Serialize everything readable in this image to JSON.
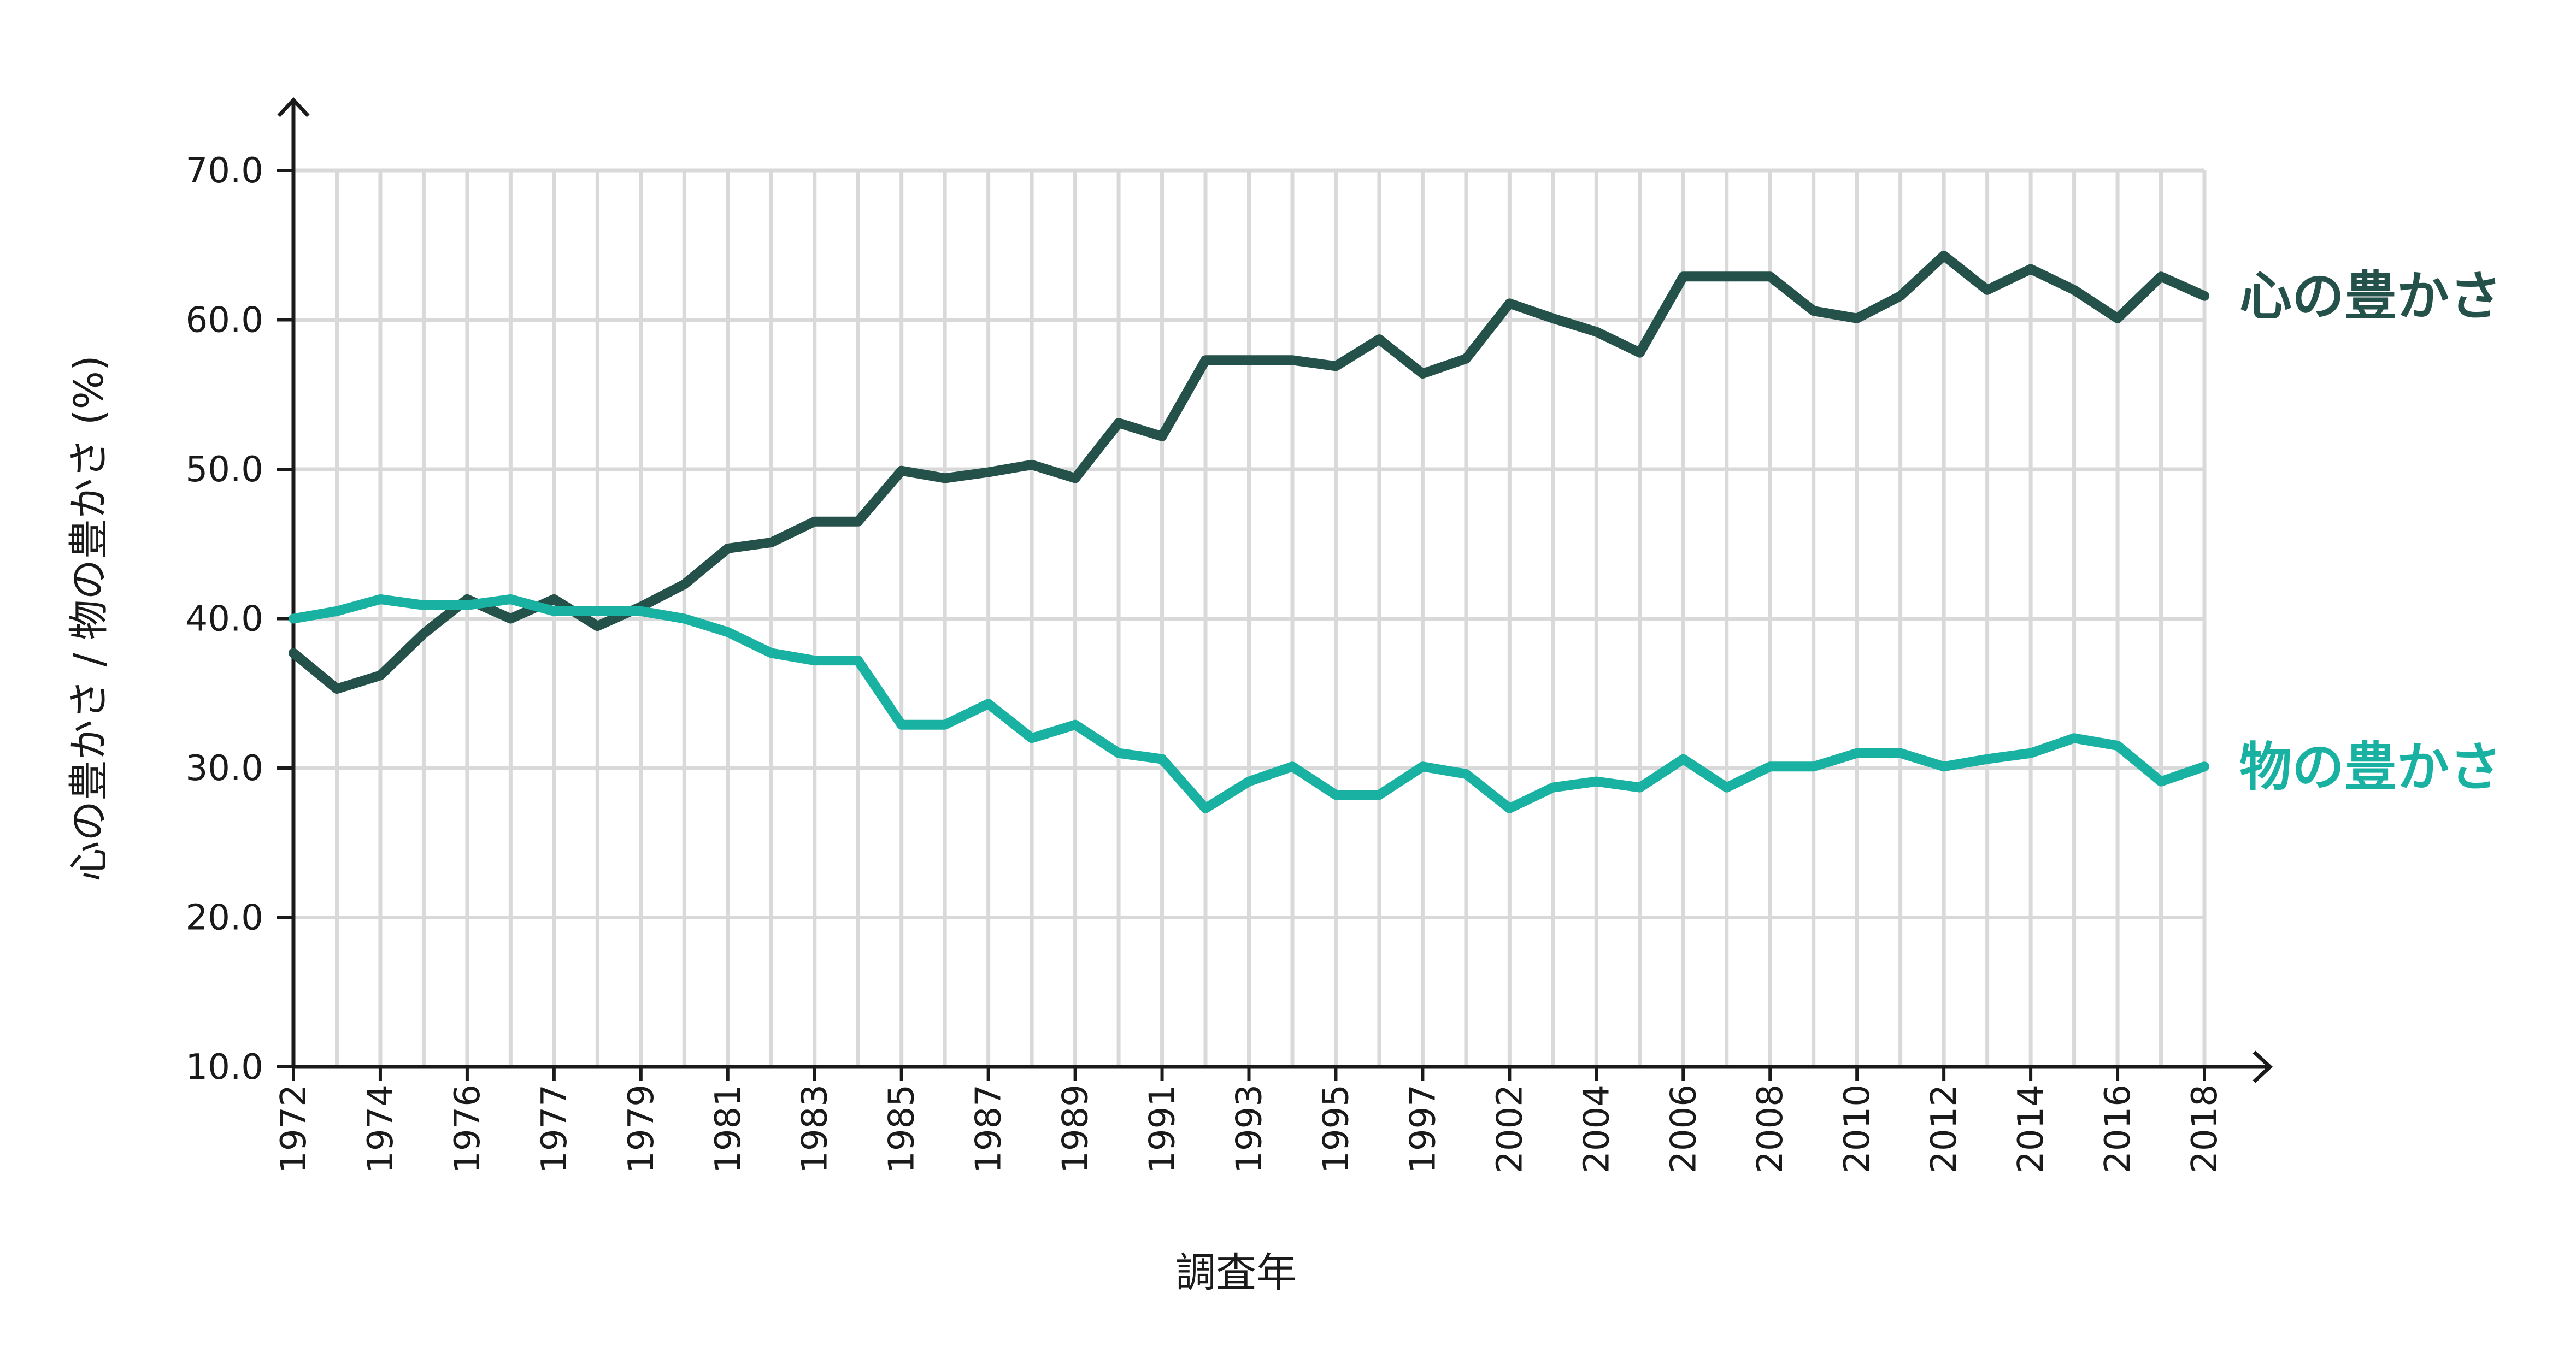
{
  "chart_data": {
    "type": "line",
    "title": "",
    "xlabel": "調査年",
    "ylabel": "心の豊かさ / 物の豊かさ (%)",
    "ylim": [
      10,
      70
    ],
    "yticks": [
      "10.0",
      "20.0",
      "30.0",
      "40.0",
      "50.0",
      "60.0",
      "70.0"
    ],
    "grid": true,
    "x": [
      "1972",
      "1973",
      "1974",
      "1975",
      "1976",
      "1977",
      "1977",
      "1978",
      "1979",
      "1980",
      "1981",
      "1982",
      "1983",
      "1984",
      "1985",
      "1986",
      "1987",
      "1988",
      "1989",
      "1990",
      "1991",
      "1992",
      "1993",
      "1994",
      "1995",
      "1996",
      "1997",
      "1999",
      "2002",
      "2003",
      "2004",
      "2005",
      "2006",
      "2007",
      "2008",
      "2009",
      "2010",
      "2011",
      "2012",
      "2013",
      "2014",
      "2015",
      "2016",
      "2017",
      "2018"
    ],
    "xtick_labels": [
      "1972",
      "1974",
      "1976",
      "1977",
      "1979",
      "1981",
      "1983",
      "1985",
      "1987",
      "1989",
      "1991",
      "1993",
      "1995",
      "1997",
      "2002",
      "2004",
      "2006",
      "2008",
      "2010",
      "2012",
      "2014",
      "2016",
      "2018"
    ],
    "series": [
      {
        "name": "心の豊かさ",
        "color": "#24514a",
        "values": [
          37.7,
          35.3,
          36.2,
          39.0,
          41.3,
          40.0,
          41.3,
          39.5,
          40.8,
          42.3,
          44.7,
          45.1,
          46.5,
          46.5,
          49.9,
          49.4,
          49.8,
          50.3,
          49.4,
          53.1,
          52.2,
          57.3,
          57.3,
          57.3,
          56.9,
          58.7,
          56.4,
          57.4,
          61.1,
          60.1,
          59.2,
          57.8,
          62.9,
          62.9,
          62.9,
          60.6,
          60.1,
          61.6,
          64.3,
          62.0,
          63.4,
          62.0,
          60.1,
          62.9,
          61.6
        ]
      },
      {
        "name": "物の豊かさ",
        "color": "#19b2a2",
        "values": [
          40.0,
          40.5,
          41.3,
          40.9,
          40.9,
          41.3,
          40.5,
          40.5,
          40.5,
          40.0,
          39.1,
          37.7,
          37.2,
          37.2,
          32.9,
          32.9,
          34.3,
          32.0,
          32.9,
          31.0,
          30.6,
          27.3,
          29.1,
          30.1,
          28.2,
          28.2,
          30.1,
          29.6,
          27.3,
          28.7,
          29.1,
          28.7,
          30.6,
          28.7,
          30.1,
          30.1,
          31.0,
          31.0,
          30.1,
          30.6,
          31.0,
          32.0,
          31.5,
          29.1,
          30.1
        ]
      }
    ]
  }
}
